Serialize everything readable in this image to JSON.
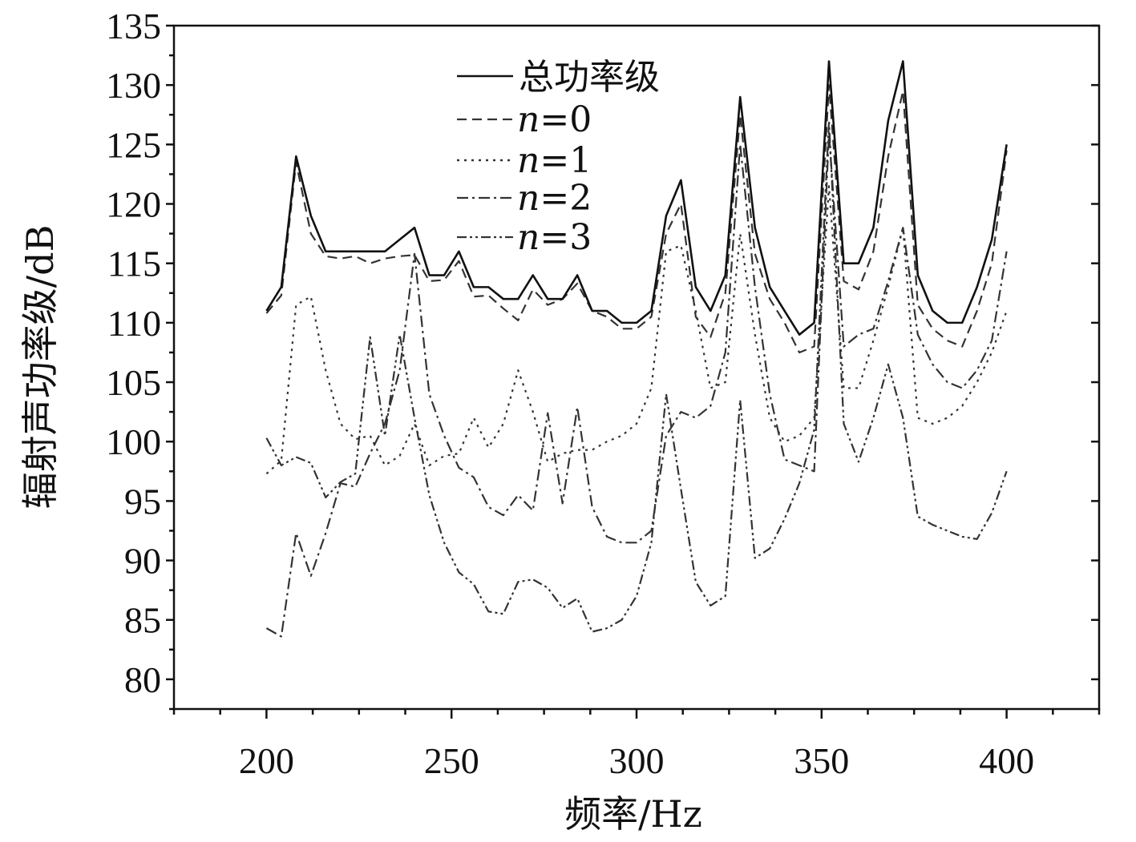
{
  "chart_data": {
    "type": "line",
    "xlabel": "频率/Hz",
    "ylabel": "辐射声功率级/dB",
    "xlim": [
      175,
      425
    ],
    "ylim": [
      77.5,
      135
    ],
    "xticks": [
      200,
      250,
      300,
      350,
      400
    ],
    "yticks": [
      80,
      85,
      90,
      95,
      100,
      105,
      110,
      115,
      120,
      125,
      130,
      135
    ],
    "grid": false,
    "legend_position": "top-center",
    "x": [
      200,
      204,
      208,
      212,
      216,
      220,
      224,
      228,
      232,
      236,
      240,
      244,
      248,
      252,
      256,
      260,
      264,
      268,
      272,
      276,
      280,
      284,
      288,
      292,
      296,
      300,
      304,
      308,
      312,
      316,
      320,
      324,
      328,
      332,
      336,
      340,
      344,
      348,
      352,
      356,
      360,
      364,
      368,
      372,
      376,
      380,
      384,
      388,
      392,
      396,
      400
    ],
    "series": [
      {
        "name": "总功率级",
        "style": "solid",
        "values": [
          111,
          113,
          124,
          119,
          116,
          116,
          116,
          116,
          116,
          117,
          118,
          114,
          114,
          116,
          113,
          113,
          112,
          112,
          114,
          112,
          112,
          114,
          111,
          111,
          110,
          110,
          111,
          119,
          122,
          113,
          111,
          114,
          129,
          118,
          113,
          111,
          109,
          110,
          132,
          115,
          115,
          118,
          127,
          132,
          114,
          111,
          110,
          110,
          113,
          117,
          125
        ]
      },
      {
        "name_prefix": "n",
        "name_suffix": "=0",
        "style": "dashed",
        "values": [
          110.8,
          112.3,
          123.5,
          117.5,
          115.6,
          115.4,
          115.6,
          115,
          115.4,
          115.6,
          115.7,
          113.5,
          113.6,
          115.2,
          112.2,
          112.3,
          111.2,
          110.2,
          112.8,
          111.5,
          112,
          113.3,
          111,
          110.5,
          109.5,
          109.5,
          110.5,
          117.5,
          120,
          110.5,
          108.8,
          112.5,
          127.5,
          115.8,
          112,
          110,
          107.5,
          108,
          130,
          113.5,
          112.8,
          116,
          124,
          129.5,
          111.5,
          109.5,
          108.5,
          108,
          111,
          115,
          124.5
        ]
      },
      {
        "name_prefix": "n",
        "name_suffix": "=1",
        "style": "dotted",
        "values": [
          97.3,
          98.4,
          111.5,
          112.2,
          106,
          101.5,
          100.2,
          100.5,
          98,
          98.8,
          101.5,
          98,
          98.8,
          99,
          102,
          99.5,
          101.5,
          106,
          102.5,
          98.3,
          99,
          99.3,
          99.3,
          100,
          100.5,
          101.5,
          104.5,
          116,
          116.5,
          111,
          104.5,
          105,
          117.5,
          109,
          102,
          100,
          100.5,
          102,
          121.5,
          104.5,
          104.5,
          108.5,
          113,
          118,
          102,
          101.5,
          102,
          103,
          105,
          107.5,
          111
        ]
      },
      {
        "name_prefix": "n",
        "name_suffix": "=2",
        "style": "dashdot",
        "values": [
          84.3,
          83.6,
          92.3,
          88.7,
          92.3,
          96.5,
          96.2,
          99,
          101.5,
          106,
          115.8,
          104,
          100.5,
          97.8,
          97,
          94.5,
          93.8,
          95.5,
          94.2,
          102.4,
          94.8,
          102.9,
          94.5,
          92,
          91.5,
          91.5,
          92.5,
          100.5,
          102.5,
          102,
          103,
          107.5,
          125,
          113,
          104,
          98.5,
          98,
          97.5,
          126,
          108,
          109,
          109.5,
          113.5,
          118,
          109,
          106.5,
          105,
          104.5,
          106,
          108.5,
          116
        ]
      },
      {
        "name_prefix": "n",
        "name_suffix": "=3",
        "style": "dashdotdot",
        "values": [
          100.3,
          98,
          98.7,
          98.2,
          95.3,
          96.6,
          97.3,
          108.8,
          100.5,
          109,
          102,
          95.5,
          91.5,
          89,
          88,
          85.7,
          85.5,
          88.2,
          88.4,
          87.7,
          86,
          86.8,
          84,
          84.3,
          85,
          87,
          91.5,
          104,
          96,
          88.2,
          86.2,
          87,
          103.5,
          90.2,
          91,
          93.5,
          96.5,
          101,
          127,
          101.5,
          98.3,
          102,
          106.5,
          102,
          93.7,
          93,
          92.5,
          92,
          91.8,
          94,
          97.5
        ]
      }
    ]
  }
}
